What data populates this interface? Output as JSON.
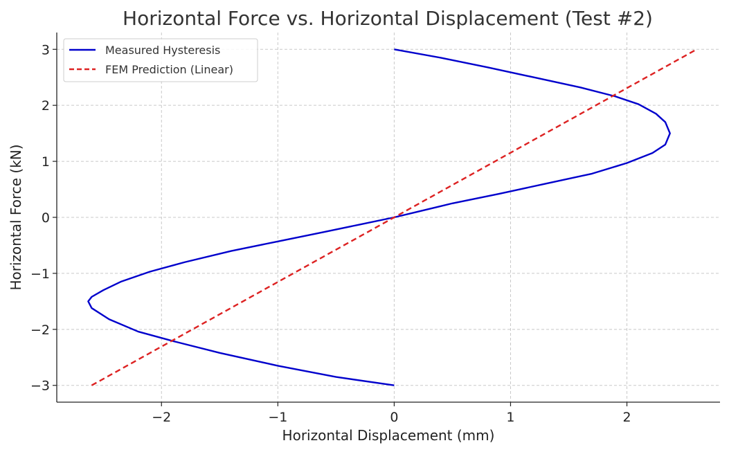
{
  "chart_data": {
    "type": "line",
    "title": "Horizontal Force vs. Horizontal Displacement (Test #2)",
    "xlabel": "Horizontal Displacement (mm)",
    "ylabel": "Horizontal Force (kN)",
    "xlim": [
      -2.9,
      2.8
    ],
    "ylim": [
      -3.3,
      3.3
    ],
    "xticks": [
      -2,
      -1,
      0,
      1,
      2
    ],
    "yticks": [
      -3,
      -2,
      -1,
      0,
      1,
      2,
      3
    ],
    "xtick_labels": [
      "−2",
      "−1",
      "0",
      "1",
      "2"
    ],
    "ytick_labels": [
      "−3",
      "−2",
      "−1",
      "0",
      "1",
      "2",
      "3"
    ],
    "grid": true,
    "legend_position": "top-left",
    "series": [
      {
        "name": "Measured Hysteresis",
        "color": "#0000cc",
        "style": "solid",
        "x": [
          0,
          0.4,
          0.8,
          1.2,
          1.6,
          1.9,
          2.1,
          2.25,
          2.33,
          2.37,
          2.33,
          2.22,
          2.0,
          1.7,
          1.3,
          0.9,
          0.5,
          0.2,
          0,
          -0.3,
          -0.6,
          -1.0,
          -1.4,
          -1.8,
          -2.1,
          -2.35,
          -2.5,
          -2.6,
          -2.63,
          -2.6,
          -2.45,
          -2.2,
          -1.9,
          -1.5,
          -1.0,
          -0.5,
          0
        ],
        "y": [
          3.0,
          2.85,
          2.68,
          2.5,
          2.32,
          2.16,
          2.02,
          1.85,
          1.7,
          1.5,
          1.3,
          1.15,
          0.97,
          0.78,
          0.6,
          0.42,
          0.25,
          0.1,
          0.0,
          -0.13,
          -0.26,
          -0.43,
          -0.6,
          -0.8,
          -0.97,
          -1.15,
          -1.3,
          -1.42,
          -1.5,
          -1.62,
          -1.82,
          -2.04,
          -2.21,
          -2.42,
          -2.65,
          -2.85,
          -3.0
        ]
      },
      {
        "name": "FEM Prediction (Linear)",
        "color": "#dd2222",
        "style": "dashed",
        "x": [
          -2.6,
          2.6
        ],
        "y": [
          -3.0,
          3.0
        ]
      }
    ]
  }
}
